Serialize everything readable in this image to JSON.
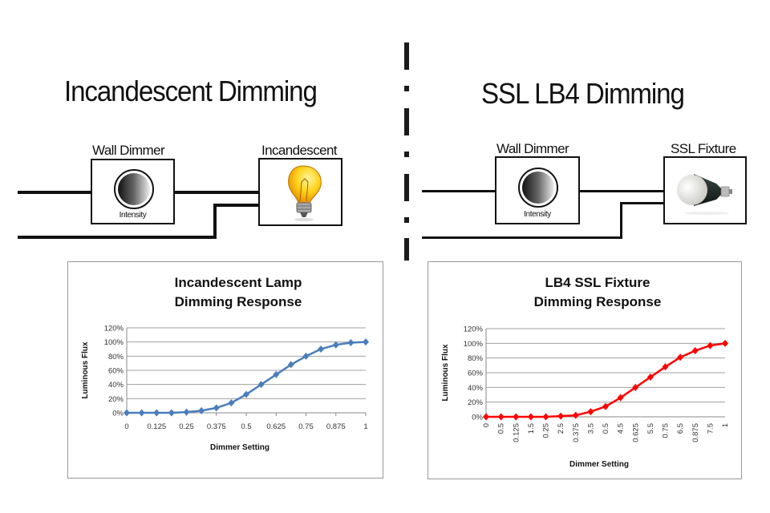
{
  "left_panel": {
    "title": "Incandescent Dimming",
    "dimmer_label": "Wall Dimmer",
    "dimmer_knob_label": "Intensity",
    "load_label": "Incandescent",
    "load_icon": "incandescent-bulb-icon"
  },
  "right_panel": {
    "title": "SSL LB4 Dimming",
    "dimmer_label": "Wall Dimmer",
    "dimmer_knob_label": "Intensity",
    "load_label": "SSL Fixture",
    "load_icon": "led-bulb-icon"
  },
  "divider": {
    "style": "dash-dot",
    "color": "#1a1a1a"
  },
  "chart_data": [
    {
      "type": "line",
      "title": "Incandescent Lamp\nDimming Response",
      "title_lines": [
        "Incandescent Lamp",
        "Dimming Response"
      ],
      "xlabel": "Dimmer Setting",
      "ylabel": "Luminous Flux",
      "x": [
        0,
        0.0625,
        0.125,
        0.1875,
        0.25,
        0.3125,
        0.375,
        0.4375,
        0.5,
        0.5625,
        0.625,
        0.6875,
        0.75,
        0.8125,
        0.875,
        0.9375,
        1
      ],
      "x_tick_labels": [
        "0",
        "0.125",
        "0.25",
        "0.375",
        "0.5",
        "0.625",
        "0.75",
        "0.875",
        "1"
      ],
      "series": [
        {
          "name": "Incandescent",
          "color": "#4a7ebb",
          "marker": "diamond",
          "values": [
            0,
            0,
            0,
            0,
            1,
            3,
            7,
            14,
            26,
            40,
            54,
            68,
            80,
            90,
            96,
            99,
            100
          ]
        }
      ],
      "y_tick_labels": [
        "0%",
        "20%",
        "40%",
        "60%",
        "80%",
        "100%",
        "120%"
      ],
      "ylim": [
        0,
        120
      ],
      "grid": true,
      "legend": "none"
    },
    {
      "type": "line",
      "title": "LB4 SSL Fixture\nDimming Response",
      "title_lines": [
        "LB4 SSL Fixture",
        "Dimming Response"
      ],
      "xlabel": "Dimmer Setting",
      "ylabel": "Luminous Flux",
      "categories": [
        "0",
        "0.5",
        "0.125",
        "1.5",
        "0.25",
        "2.5",
        "0.375",
        "3.5",
        "0.5",
        "4.5",
        "0.625",
        "5.5",
        "0.75",
        "6.5",
        "0.875",
        "7.5",
        "1"
      ],
      "series": [
        {
          "name": "LB4 SSL",
          "color": "#ff0000",
          "marker": "diamond",
          "values": [
            0,
            0,
            0,
            0,
            0,
            1,
            2,
            7,
            14,
            26,
            40,
            54,
            68,
            81,
            90,
            97,
            100
          ]
        }
      ],
      "y_tick_labels": [
        "0%",
        "20%",
        "40%",
        "60%",
        "80%",
        "100%",
        "120%"
      ],
      "ylim": [
        0,
        120
      ],
      "grid": true,
      "legend": "none"
    }
  ]
}
